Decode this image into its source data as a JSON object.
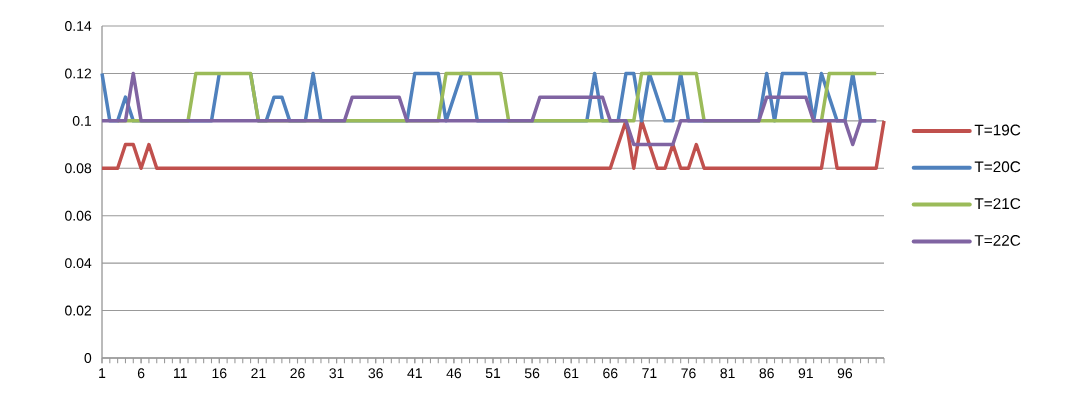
{
  "chart_data": {
    "type": "line",
    "x": [
      1,
      2,
      3,
      4,
      5,
      6,
      7,
      8,
      9,
      10,
      11,
      12,
      13,
      14,
      15,
      16,
      17,
      18,
      19,
      20,
      21,
      22,
      23,
      24,
      25,
      26,
      27,
      28,
      29,
      30,
      31,
      32,
      33,
      34,
      35,
      36,
      37,
      38,
      39,
      40,
      41,
      42,
      43,
      44,
      45,
      46,
      47,
      48,
      49,
      50,
      51,
      52,
      53,
      54,
      55,
      56,
      57,
      58,
      59,
      60,
      61,
      62,
      63,
      64,
      65,
      66,
      67,
      68,
      69,
      70,
      71,
      72,
      73,
      74,
      75,
      76,
      77,
      78,
      79,
      80,
      81,
      82,
      83,
      84,
      85,
      86,
      87,
      88,
      89,
      90,
      91,
      92,
      93,
      94,
      95,
      96,
      97,
      98,
      99,
      100,
      101
    ],
    "series": [
      {
        "name": "T=19C",
        "color": "#c0504d",
        "values": [
          0.08,
          0.08,
          0.08,
          0.09,
          0.09,
          0.08,
          0.09,
          0.08,
          0.08,
          0.08,
          0.08,
          0.08,
          0.08,
          0.08,
          0.08,
          0.08,
          0.08,
          0.08,
          0.08,
          0.08,
          0.08,
          0.08,
          0.08,
          0.08,
          0.08,
          0.08,
          0.08,
          0.08,
          0.08,
          0.08,
          0.08,
          0.08,
          0.08,
          0.08,
          0.08,
          0.08,
          0.08,
          0.08,
          0.08,
          0.08,
          0.08,
          0.08,
          0.08,
          0.08,
          0.08,
          0.08,
          0.08,
          0.08,
          0.08,
          0.08,
          0.08,
          0.08,
          0.08,
          0.08,
          0.08,
          0.08,
          0.08,
          0.08,
          0.08,
          0.08,
          0.08,
          0.08,
          0.08,
          0.08,
          0.08,
          0.08,
          0.09,
          0.1,
          0.08,
          0.1,
          0.09,
          0.08,
          0.08,
          0.09,
          0.08,
          0.08,
          0.09,
          0.08,
          0.08,
          0.08,
          0.08,
          0.08,
          0.08,
          0.08,
          0.08,
          0.08,
          0.08,
          0.08,
          0.08,
          0.08,
          0.08,
          0.08,
          0.08,
          0.1,
          0.08,
          0.08,
          0.08,
          0.08,
          0.08,
          0.08,
          0.1
        ]
      },
      {
        "name": "T=20C",
        "color": "#4f81bd",
        "values": [
          0.12,
          0.1,
          0.1,
          0.11,
          0.1,
          0.1,
          0.1,
          0.1,
          0.1,
          0.1,
          0.1,
          0.1,
          0.1,
          0.1,
          0.1,
          0.12,
          null,
          null,
          null,
          0.12,
          0.1,
          0.1,
          0.11,
          0.11,
          0.1,
          0.1,
          0.1,
          0.12,
          0.1,
          0.1,
          0.1,
          0.1,
          0.1,
          0.1,
          0.1,
          0.1,
          0.1,
          0.1,
          0.1,
          0.1,
          0.12,
          0.12,
          0.12,
          0.12,
          0.1,
          0.11,
          0.12,
          0.12,
          0.1,
          0.1,
          0.1,
          0.1,
          0.1,
          0.1,
          0.1,
          0.1,
          0.1,
          0.1,
          0.1,
          0.1,
          0.1,
          0.1,
          0.1,
          0.12,
          0.1,
          0.1,
          0.1,
          0.12,
          0.12,
          0.1,
          0.12,
          0.11,
          0.1,
          0.1,
          0.12,
          0.1,
          0.1,
          0.1,
          0.1,
          0.1,
          0.1,
          0.1,
          0.1,
          0.1,
          0.1,
          0.12,
          0.1,
          0.12,
          0.12,
          0.12,
          0.12,
          0.1,
          0.12,
          0.11,
          0.1,
          0.1,
          0.12,
          0.1,
          0.1,
          0.1,
          null
        ]
      },
      {
        "name": "T=21C",
        "color": "#9bbb59",
        "values": [
          null,
          null,
          0.1,
          0.1,
          0.1,
          0.1,
          0.1,
          0.1,
          0.1,
          0.1,
          0.1,
          0.1,
          0.12,
          0.12,
          0.12,
          0.12,
          0.12,
          0.12,
          0.12,
          0.12,
          0.1,
          0.1,
          0.1,
          0.1,
          0.1,
          0.1,
          0.1,
          0.1,
          0.1,
          0.1,
          0.1,
          0.1,
          0.1,
          0.1,
          0.1,
          0.1,
          0.1,
          0.1,
          0.1,
          0.1,
          0.1,
          0.1,
          0.1,
          0.1,
          0.12,
          0.12,
          0.12,
          0.12,
          0.12,
          0.12,
          0.12,
          0.12,
          0.1,
          0.1,
          0.1,
          0.1,
          0.1,
          0.1,
          0.1,
          0.1,
          0.1,
          0.1,
          0.1,
          0.1,
          0.1,
          0.1,
          0.1,
          0.1,
          0.1,
          0.12,
          0.12,
          0.12,
          0.12,
          0.12,
          0.12,
          0.12,
          0.12,
          0.1,
          0.1,
          0.1,
          0.1,
          0.1,
          0.1,
          0.1,
          0.1,
          0.1,
          0.1,
          0.1,
          0.1,
          0.1,
          0.1,
          0.1,
          0.1,
          0.12,
          0.12,
          0.12,
          0.12,
          0.12,
          0.12,
          0.12,
          null
        ]
      },
      {
        "name": "T=22C",
        "color": "#8064a2",
        "values": [
          0.1,
          0.1,
          0.1,
          0.1,
          0.12,
          0.1,
          0.1,
          0.1,
          0.1,
          0.1,
          0.1,
          0.1,
          0.1,
          0.1,
          0.1,
          0.1,
          0.1,
          0.1,
          0.1,
          0.1,
          0.1,
          0.1,
          0.1,
          0.1,
          0.1,
          0.1,
          0.1,
          0.1,
          0.1,
          0.1,
          0.1,
          0.1,
          0.11,
          0.11,
          0.11,
          0.11,
          0.11,
          0.11,
          0.11,
          0.1,
          0.1,
          0.1,
          0.1,
          0.1,
          0.1,
          0.1,
          0.1,
          0.1,
          0.1,
          0.1,
          0.1,
          0.1,
          0.1,
          0.1,
          0.1,
          0.1,
          0.11,
          0.11,
          0.11,
          0.11,
          0.11,
          0.11,
          0.11,
          0.11,
          0.11,
          0.1,
          0.1,
          0.1,
          0.09,
          0.09,
          0.09,
          0.09,
          0.09,
          0.09,
          0.1,
          0.1,
          0.1,
          0.1,
          0.1,
          0.1,
          0.1,
          0.1,
          0.1,
          0.1,
          0.1,
          0.11,
          0.11,
          0.11,
          0.11,
          0.11,
          0.11,
          0.1,
          0.1,
          0.1,
          0.1,
          0.1,
          0.09,
          0.1,
          0.1,
          0.1,
          null
        ]
      }
    ],
    "xlim": [
      1,
      101
    ],
    "xticks": [
      1,
      6,
      11,
      16,
      21,
      26,
      31,
      36,
      41,
      46,
      51,
      56,
      61,
      66,
      71,
      76,
      81,
      86,
      91,
      96
    ],
    "ylim": [
      0,
      0.14
    ],
    "yticks": [
      0,
      0.02,
      0.04,
      0.06,
      0.08,
      0.1,
      0.12,
      0.14
    ],
    "grid": "y",
    "legend": "right",
    "marker": "none",
    "line_style": "solid"
  }
}
